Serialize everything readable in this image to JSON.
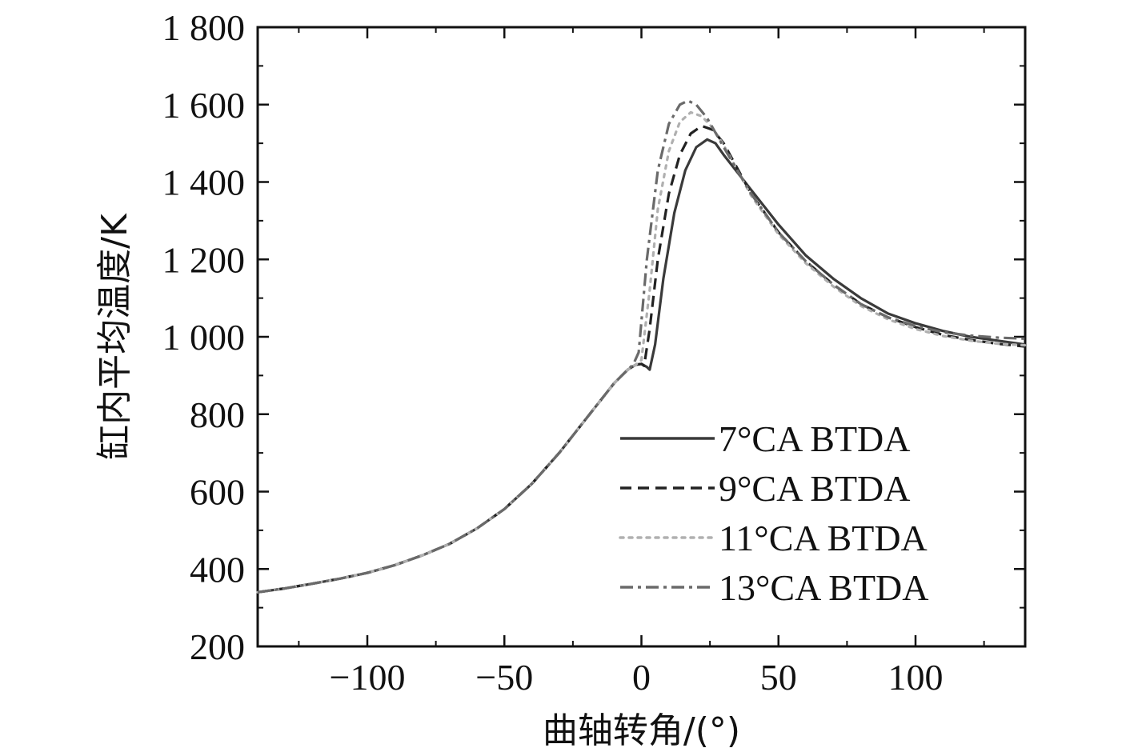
{
  "chart_data": {
    "type": "line",
    "xlabel": "曲轴转角/(°)",
    "ylabel": "缸内平均温度/K",
    "xlim": [
      -140,
      140
    ],
    "ylim": [
      200,
      1800
    ],
    "xticks": [
      -100,
      -50,
      0,
      50,
      100
    ],
    "xtick_labels": [
      "−100",
      "−50",
      "0",
      "50",
      "100"
    ],
    "yticks": [
      200,
      400,
      600,
      800,
      1000,
      1200,
      1400,
      1600,
      1800
    ],
    "ytick_labels": [
      "200",
      "400",
      "600",
      "800",
      "1 000",
      "1 200",
      "1 400",
      "1 600",
      "1 800"
    ],
    "legend_position": "lower-right",
    "grid": false,
    "series": [
      {
        "name": "7°CA BTDA",
        "style": "solid",
        "color": "#3a3a3a",
        "points": [
          [
            -140,
            340
          ],
          [
            -130,
            350
          ],
          [
            -120,
            362
          ],
          [
            -110,
            375
          ],
          [
            -100,
            390
          ],
          [
            -90,
            410
          ],
          [
            -80,
            435
          ],
          [
            -70,
            465
          ],
          [
            -60,
            505
          ],
          [
            -50,
            555
          ],
          [
            -40,
            620
          ],
          [
            -30,
            700
          ],
          [
            -20,
            790
          ],
          [
            -10,
            880
          ],
          [
            -5,
            915
          ],
          [
            -2,
            928
          ],
          [
            0,
            930
          ],
          [
            2,
            922
          ],
          [
            3,
            915
          ],
          [
            5,
            980
          ],
          [
            8,
            1150
          ],
          [
            12,
            1320
          ],
          [
            16,
            1430
          ],
          [
            20,
            1490
          ],
          [
            24,
            1510
          ],
          [
            27,
            1500
          ],
          [
            30,
            1470
          ],
          [
            40,
            1380
          ],
          [
            50,
            1290
          ],
          [
            60,
            1210
          ],
          [
            70,
            1150
          ],
          [
            80,
            1100
          ],
          [
            90,
            1060
          ],
          [
            100,
            1035
          ],
          [
            110,
            1015
          ],
          [
            120,
            1000
          ],
          [
            130,
            990
          ],
          [
            140,
            980
          ]
        ]
      },
      {
        "name": "9°CA BTDA",
        "style": "dashed",
        "color": "#222222",
        "points": [
          [
            -140,
            340
          ],
          [
            -130,
            350
          ],
          [
            -120,
            362
          ],
          [
            -110,
            375
          ],
          [
            -100,
            390
          ],
          [
            -90,
            410
          ],
          [
            -80,
            435
          ],
          [
            -70,
            465
          ],
          [
            -60,
            505
          ],
          [
            -50,
            555
          ],
          [
            -40,
            620
          ],
          [
            -30,
            700
          ],
          [
            -20,
            790
          ],
          [
            -10,
            880
          ],
          [
            -5,
            915
          ],
          [
            -2,
            928
          ],
          [
            0,
            930
          ],
          [
            1,
            925
          ],
          [
            3,
            1020
          ],
          [
            6,
            1200
          ],
          [
            10,
            1370
          ],
          [
            14,
            1470
          ],
          [
            18,
            1525
          ],
          [
            22,
            1545
          ],
          [
            26,
            1535
          ],
          [
            30,
            1500
          ],
          [
            40,
            1370
          ],
          [
            50,
            1270
          ],
          [
            60,
            1195
          ],
          [
            70,
            1135
          ],
          [
            80,
            1085
          ],
          [
            90,
            1050
          ],
          [
            100,
            1025
          ],
          [
            110,
            1005
          ],
          [
            120,
            992
          ],
          [
            130,
            982
          ],
          [
            140,
            975
          ]
        ]
      },
      {
        "name": "11°CA BTDA",
        "style": "dotted",
        "color": "#b0b0b0",
        "points": [
          [
            -140,
            340
          ],
          [
            -130,
            350
          ],
          [
            -120,
            362
          ],
          [
            -110,
            375
          ],
          [
            -100,
            390
          ],
          [
            -90,
            410
          ],
          [
            -80,
            435
          ],
          [
            -70,
            465
          ],
          [
            -60,
            505
          ],
          [
            -50,
            555
          ],
          [
            -40,
            620
          ],
          [
            -30,
            700
          ],
          [
            -20,
            790
          ],
          [
            -10,
            880
          ],
          [
            -5,
            915
          ],
          [
            -2,
            928
          ],
          [
            0,
            940
          ],
          [
            3,
            1120
          ],
          [
            6,
            1330
          ],
          [
            10,
            1480
          ],
          [
            14,
            1555
          ],
          [
            18,
            1580
          ],
          [
            22,
            1570
          ],
          [
            26,
            1540
          ],
          [
            30,
            1495
          ],
          [
            40,
            1365
          ],
          [
            50,
            1265
          ],
          [
            60,
            1190
          ],
          [
            70,
            1130
          ],
          [
            80,
            1080
          ],
          [
            90,
            1045
          ],
          [
            100,
            1020
          ],
          [
            110,
            1002
          ],
          [
            120,
            990
          ],
          [
            130,
            982
          ],
          [
            140,
            978
          ]
        ]
      },
      {
        "name": "13°CA BTDA",
        "style": "dashdot",
        "color": "#6a6a6a",
        "points": [
          [
            -140,
            340
          ],
          [
            -130,
            350
          ],
          [
            -120,
            362
          ],
          [
            -110,
            375
          ],
          [
            -100,
            390
          ],
          [
            -90,
            410
          ],
          [
            -80,
            435
          ],
          [
            -70,
            465
          ],
          [
            -60,
            505
          ],
          [
            -50,
            555
          ],
          [
            -40,
            620
          ],
          [
            -30,
            700
          ],
          [
            -20,
            790
          ],
          [
            -10,
            880
          ],
          [
            -5,
            915
          ],
          [
            -3,
            928
          ],
          [
            -1,
            960
          ],
          [
            2,
            1200
          ],
          [
            6,
            1430
          ],
          [
            10,
            1550
          ],
          [
            14,
            1600
          ],
          [
            17,
            1610
          ],
          [
            20,
            1600
          ],
          [
            24,
            1565
          ],
          [
            30,
            1490
          ],
          [
            40,
            1370
          ],
          [
            50,
            1270
          ],
          [
            60,
            1195
          ],
          [
            70,
            1135
          ],
          [
            80,
            1085
          ],
          [
            90,
            1050
          ],
          [
            100,
            1028
          ],
          [
            110,
            1012
          ],
          [
            120,
            1003
          ],
          [
            130,
            998
          ],
          [
            140,
            995
          ]
        ]
      }
    ]
  }
}
